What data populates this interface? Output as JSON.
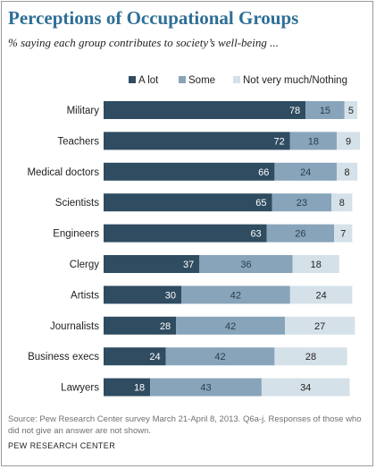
{
  "header": {
    "title": "Perceptions of Occupational Groups",
    "subtitle": "% saying each group contributes to society’s well-being ..."
  },
  "footer": {
    "source": "Source: Pew Research Center survey March 21-April 8, 2013. Q6a-j. Responses of those who did not give an answer are not shown.",
    "brand": "PEW RESEARCH CENTER"
  },
  "colors": {
    "a_lot": "#2f4c61",
    "some": "#87a4ba",
    "not_much": "#d5e1e9",
    "title": "#2f6f96"
  },
  "chart_data": {
    "type": "bar",
    "orientation": "horizontal",
    "stacked": true,
    "categories": [
      "Military",
      "Teachers",
      "Medical doctors",
      "Scientists",
      "Engineers",
      "Clergy",
      "Artists",
      "Journalists",
      "Business execs",
      "Lawyers"
    ],
    "series": [
      {
        "name": "A lot",
        "values": [
          78,
          72,
          66,
          65,
          63,
          37,
          30,
          28,
          24,
          18
        ]
      },
      {
        "name": "Some",
        "values": [
          15,
          18,
          24,
          23,
          26,
          36,
          42,
          42,
          42,
          43
        ]
      },
      {
        "name": "Not very much/Nothing",
        "values": [
          5,
          9,
          8,
          8,
          7,
          18,
          24,
          27,
          28,
          34
        ]
      }
    ],
    "legend": "top",
    "grid": false,
    "xlim": [
      0,
      100
    ]
  }
}
